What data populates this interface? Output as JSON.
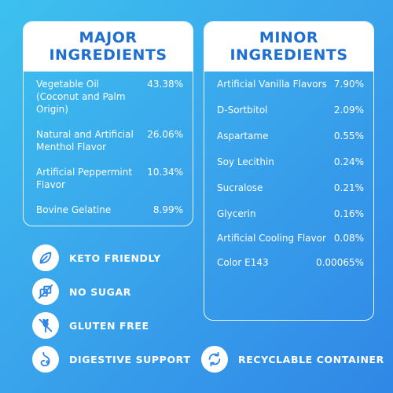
{
  "major": {
    "title_line1": "MAJOR",
    "title_line2": "INGREDIENTS",
    "items": [
      {
        "name": "Vegetable Oil (Coconut and Palm Origin)",
        "value": "43.38%"
      },
      {
        "name": "Natural and Artificial Menthol Flavor",
        "value": "26.06%"
      },
      {
        "name": "Artificial Peppermint Flavor",
        "value": "10.34%"
      },
      {
        "name": "Bovine Gelatine",
        "value": "8.99%"
      }
    ]
  },
  "minor": {
    "title_line1": "MINOR",
    "title_line2": "INGREDIENTS",
    "items": [
      {
        "name": "Artificial Vanilla Flavors",
        "value": "7.90%"
      },
      {
        "name": "D-Sortbitol",
        "value": "2.09%"
      },
      {
        "name": "Aspartame",
        "value": "0.55%"
      },
      {
        "name": "Soy Lecithin",
        "value": "0.24%"
      },
      {
        "name": "Sucralose",
        "value": "0.21%"
      },
      {
        "name": "Glycerin",
        "value": "0.16%"
      },
      {
        "name": "Artificial Cooling Flavor",
        "value": "0.08%"
      },
      {
        "name": "Color E143",
        "value": "0.00065%"
      }
    ]
  },
  "badges": [
    {
      "label": "KETO FRIENDLY",
      "icon": "leaf-icon"
    },
    {
      "label": "NO SUGAR",
      "icon": "no-sugar-icon"
    },
    {
      "label": "GLUTEN FREE",
      "icon": "gluten-free-icon"
    },
    {
      "label": "DIGESTIVE SUPPORT",
      "icon": "digestive-icon"
    },
    {
      "label": "RECYCLABLE CONTAINER",
      "icon": "recycle-icon"
    }
  ],
  "colors": {
    "background_start": "#3cc1ee",
    "background_end": "#2f87e6",
    "header_text": "#1f6fd1",
    "icon": "#2f86e6"
  }
}
